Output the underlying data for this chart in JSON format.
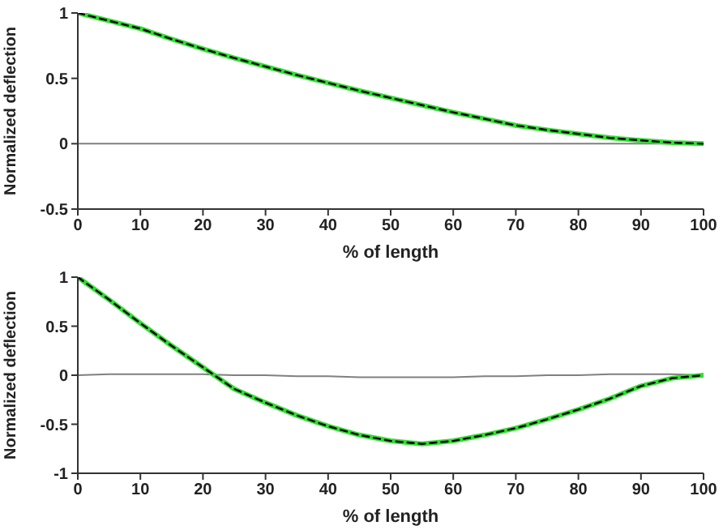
{
  "chart_data": [
    {
      "type": "line",
      "xlabel": "% of length",
      "ylabel": "Normalized deflection",
      "xlim": [
        0,
        100
      ],
      "xticks": [
        0,
        10,
        20,
        30,
        40,
        50,
        60,
        70,
        80,
        90,
        100
      ],
      "ylim": [
        -0.5,
        1
      ],
      "yticks": [
        -0.5,
        0,
        0.5,
        1
      ],
      "x": [
        0,
        5,
        10,
        15,
        20,
        25,
        30,
        35,
        40,
        45,
        50,
        55,
        60,
        65,
        70,
        75,
        80,
        85,
        90,
        95,
        100
      ],
      "series": [
        {
          "color": "#808080",
          "line_style": "solid",
          "values": [
            0,
            0,
            0,
            0,
            0,
            0,
            0,
            0,
            0,
            0,
            0,
            0,
            0,
            0,
            0,
            0,
            0,
            0,
            0,
            0,
            0
          ]
        },
        {
          "color": "#33dd33",
          "line_style": "solid",
          "values": [
            1,
            0.94,
            0.88,
            0.8,
            0.725,
            0.655,
            0.59,
            0.525,
            0.465,
            0.405,
            0.35,
            0.295,
            0.24,
            0.19,
            0.14,
            0.105,
            0.075,
            0.045,
            0.025,
            0.008,
            0
          ]
        },
        {
          "color": "#000000",
          "line_style": "dashed",
          "values": [
            1,
            0.94,
            0.88,
            0.8,
            0.725,
            0.655,
            0.59,
            0.525,
            0.465,
            0.405,
            0.35,
            0.295,
            0.24,
            0.19,
            0.14,
            0.105,
            0.075,
            0.045,
            0.025,
            0.008,
            0
          ]
        }
      ]
    },
    {
      "type": "line",
      "xlabel": "% of length",
      "ylabel": "Normalized deflection",
      "xlim": [
        0,
        100
      ],
      "xticks": [
        0,
        10,
        20,
        30,
        40,
        50,
        60,
        70,
        80,
        90,
        100
      ],
      "ylim": [
        -1,
        1
      ],
      "yticks": [
        -1,
        -0.5,
        0,
        0.5,
        1
      ],
      "x": [
        0,
        5,
        10,
        15,
        20,
        25,
        30,
        35,
        40,
        45,
        50,
        55,
        60,
        65,
        70,
        75,
        80,
        85,
        90,
        95,
        100
      ],
      "series": [
        {
          "color": "#808080",
          "line_style": "solid",
          "values": [
            0,
            0.01,
            0.01,
            0.01,
            0.01,
            0,
            0,
            -0.01,
            -0.01,
            -0.02,
            -0.02,
            -0.02,
            -0.02,
            -0.01,
            -0.01,
            0,
            0,
            0.01,
            0.01,
            0.01,
            0
          ]
        },
        {
          "color": "#33dd33",
          "line_style": "solid",
          "values": [
            1,
            0.77,
            0.53,
            0.3,
            0.08,
            -0.14,
            -0.28,
            -0.41,
            -0.52,
            -0.61,
            -0.67,
            -0.7,
            -0.67,
            -0.61,
            -0.54,
            -0.45,
            -0.35,
            -0.24,
            -0.11,
            -0.03,
            0
          ]
        },
        {
          "color": "#000000",
          "line_style": "dashed",
          "values": [
            1,
            0.77,
            0.53,
            0.3,
            0.08,
            -0.14,
            -0.28,
            -0.41,
            -0.52,
            -0.61,
            -0.67,
            -0.7,
            -0.67,
            -0.61,
            -0.54,
            -0.45,
            -0.35,
            -0.24,
            -0.11,
            -0.03,
            0
          ]
        }
      ]
    }
  ]
}
